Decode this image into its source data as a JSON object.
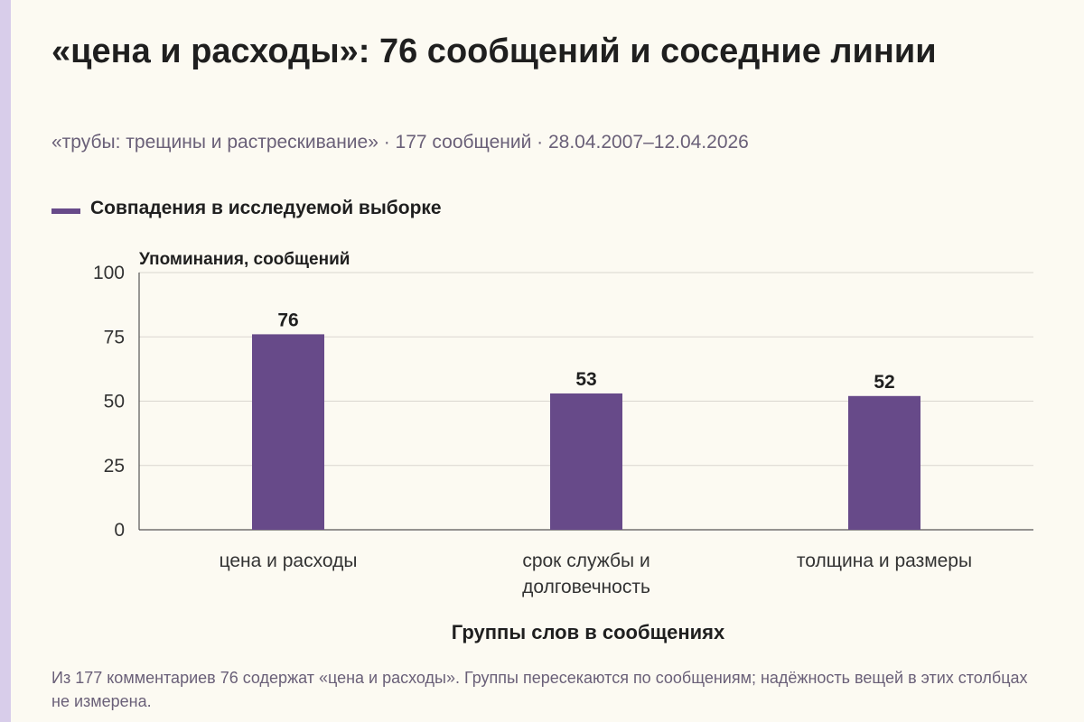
{
  "title": "«цена и расходы»: 76 сообщений и соседние линии",
  "subtitle": "«трубы: трещины и растрескивание» · 177 сообщений · 28.04.2007–12.04.2026",
  "footnote": "Из 177 комментариев 76 содержат «цена и расходы». Группы пересекаются по сообщениям; надёжность вещей в этих столбцах не измерена.",
  "colors": {
    "bar": "#674a89",
    "accent_strip": "#d8cdea",
    "background": "#fcfaf2"
  },
  "chart_data": {
    "type": "bar",
    "categories": [
      [
        "цена и расходы"
      ],
      [
        "срок службы и",
        "долговечность"
      ],
      [
        "толщина и размеры"
      ]
    ],
    "series": [
      {
        "name": "Совпадения в исследуемой выборке",
        "values": [
          76,
          53,
          52
        ]
      }
    ],
    "ylabel": "Упоминания, сообщений",
    "xlabel": "Группы слов в сообщениях",
    "ylim": [
      0,
      100
    ],
    "yticks": [
      0,
      25,
      50,
      75,
      100
    ],
    "grid": true,
    "legend": "top-left"
  }
}
